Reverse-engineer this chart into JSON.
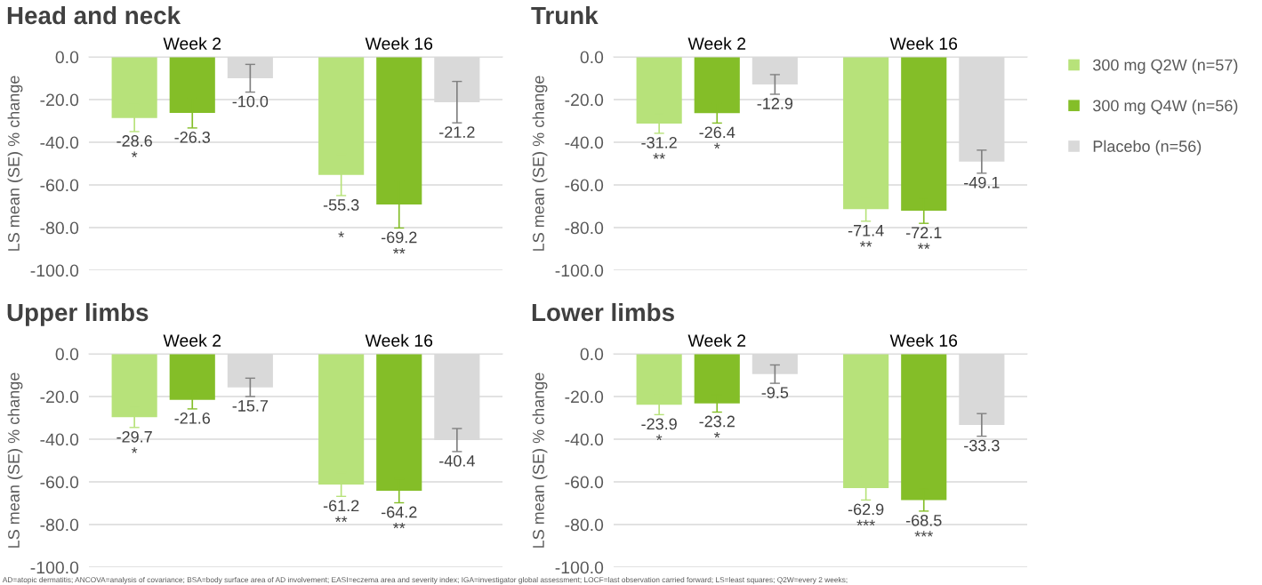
{
  "chart_data": [
    {
      "type": "bar",
      "title": "Head and neck",
      "ylabel": "LS mean (SE) % change",
      "categories": [
        "Week 2",
        "Week 16"
      ],
      "ylim": [
        -100,
        0
      ],
      "yticks": [
        {
          "value": -100,
          "label": "-100.0"
        },
        {
          "value": -80,
          "label": "-80.0"
        },
        {
          "value": -60,
          "label": "-60.0"
        },
        {
          "value": -40,
          "label": "-40.0"
        },
        {
          "value": -20,
          "label": "-20.0"
        },
        {
          "value": 0,
          "label": "0.0"
        }
      ],
      "grid": "y",
      "legend": "right",
      "series": [
        {
          "name": "300 mg Q2W (n=57)",
          "color": "#b7e27a",
          "values": [
            -28.6,
            -55.3
          ],
          "errors": [
            6.4,
            9.7
          ],
          "value_labels": [
            "-28.6\n*",
            "-55.3\n\n*"
          ]
        },
        {
          "name": "300 mg Q4W (n=56)",
          "color": "#84be28",
          "values": [
            -26.3,
            -69.2
          ],
          "errors": [
            7.0,
            11.0
          ],
          "value_labels": [
            "-26.3",
            "-69.2\n**"
          ]
        },
        {
          "name": "Placebo (n=56)",
          "color": "#d9d9d9",
          "values": [
            -10.0,
            -21.2
          ],
          "errors": [
            6.5,
            9.7
          ],
          "value_labels": [
            "-10.0",
            "-21.2"
          ]
        }
      ]
    },
    {
      "type": "bar",
      "title": "Trunk",
      "ylabel": "LS mean (SE) % change",
      "categories": [
        "Week 2",
        "Week 16"
      ],
      "ylim": [
        -100,
        0
      ],
      "yticks": [
        {
          "value": -100,
          "label": "-100.0"
        },
        {
          "value": -80,
          "label": "-80.0"
        },
        {
          "value": -60,
          "label": "-60.0"
        },
        {
          "value": -40,
          "label": "-40.0"
        },
        {
          "value": -20,
          "label": "-20.0"
        },
        {
          "value": 0,
          "label": "0.0"
        }
      ],
      "grid": "y",
      "series": [
        {
          "color": "#b7e27a",
          "values": [
            -31.2,
            -71.4
          ],
          "errors": [
            4.6,
            5.6
          ],
          "value_labels": [
            "-31.2\n**",
            "-71.4\n**"
          ]
        },
        {
          "color": "#84be28",
          "values": [
            -26.4,
            -72.1
          ],
          "errors": [
            4.6,
            5.9
          ],
          "value_labels": [
            "-26.4\n*",
            "-72.1\n**"
          ]
        },
        {
          "color": "#d9d9d9",
          "values": [
            -12.9,
            -49.1
          ],
          "errors": [
            4.6,
            5.4
          ],
          "value_labels": [
            "-12.9",
            "-49.1"
          ]
        }
      ]
    },
    {
      "type": "bar",
      "title": "Upper limbs",
      "ylabel": "LS mean (SE) % change",
      "categories": [
        "Week 2",
        "Week 16"
      ],
      "ylim": [
        -100,
        0
      ],
      "yticks": [
        {
          "value": -100,
          "label": "-100.0"
        },
        {
          "value": -80,
          "label": "-80.0"
        },
        {
          "value": -60,
          "label": "-60.0"
        },
        {
          "value": -40,
          "label": "-40.0"
        },
        {
          "value": -20,
          "label": "-20.0"
        },
        {
          "value": 0,
          "label": "0.0"
        }
      ],
      "grid": "y",
      "series": [
        {
          "color": "#b7e27a",
          "values": [
            -29.7,
            -61.2
          ],
          "errors": [
            4.8,
            5.6
          ],
          "value_labels": [
            "-29.7\n*",
            "-61.2\n**"
          ]
        },
        {
          "color": "#84be28",
          "values": [
            -21.6,
            -64.2
          ],
          "errors": [
            4.2,
            5.6
          ],
          "value_labels": [
            "-21.6",
            "-64.2\n**"
          ]
        },
        {
          "color": "#d9d9d9",
          "values": [
            -15.7,
            -40.4
          ],
          "errors": [
            4.3,
            5.4
          ],
          "value_labels": [
            "-15.7",
            "-40.4"
          ]
        }
      ]
    },
    {
      "type": "bar",
      "title": "Lower limbs",
      "ylabel": "LS mean (SE) % change",
      "categories": [
        "Week 2",
        "Week 16"
      ],
      "ylim": [
        -100,
        0
      ],
      "yticks": [
        {
          "value": -100,
          "label": "-100.0"
        },
        {
          "value": -80,
          "label": "-80.0"
        },
        {
          "value": -60,
          "label": "-60.0"
        },
        {
          "value": -40,
          "label": "-40.0"
        },
        {
          "value": -20,
          "label": "-20.0"
        },
        {
          "value": 0,
          "label": "0.0"
        }
      ],
      "grid": "y",
      "annotations": [
        "AD=atopic dermatitis; ANCOVA=analysis of covariance; BSA=body surface area of AD involvement; EASI=eczema area and severity index; IGA=investigator global assessment; LOCF=last observation carried forward; LS=least squares; Q2W=every 2 weeks;"
      ],
      "series": [
        {
          "color": "#b7e27a",
          "values": [
            -23.9,
            -62.9
          ],
          "errors": [
            4.6,
            5.6
          ],
          "value_labels": [
            "-23.9\n*",
            "-62.9\n***"
          ]
        },
        {
          "color": "#84be28",
          "values": [
            -23.2,
            -68.5
          ],
          "errors": [
            4.1,
            5.2
          ],
          "value_labels": [
            "-23.2\n*",
            "-68.5\n***"
          ]
        },
        {
          "color": "#d9d9d9",
          "values": [
            -9.5,
            -33.3
          ],
          "errors": [
            4.3,
            5.3
          ],
          "value_labels": [
            "-9.5",
            "-33.3"
          ]
        }
      ]
    }
  ]
}
